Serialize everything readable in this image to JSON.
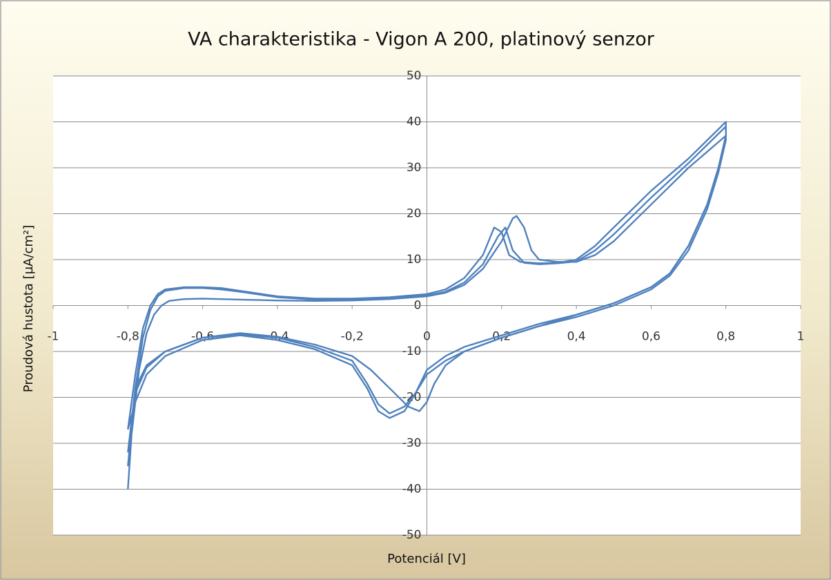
{
  "chart_data": {
    "type": "line",
    "title": "VA charakteristika - Vigon A 200, platinový senzor",
    "xlabel": "Potenciál [V]",
    "ylabel": "Proudová hustota [µA/cm²]",
    "xlim": [
      -1,
      1
    ],
    "ylim": [
      -50,
      50
    ],
    "xticks": [
      -1,
      {
        "value": -0.8,
        "label": "-0,8"
      },
      {
        "value": -0.6,
        "label": "-0,6"
      },
      {
        "value": -0.4,
        "label": "-0,4"
      },
      {
        "value": -0.2,
        "label": "-0,2"
      },
      0,
      {
        "value": 0.2,
        "label": "0,2"
      },
      {
        "value": 0.4,
        "label": "0,4"
      },
      {
        "value": 0.6,
        "label": "0,6"
      },
      {
        "value": 0.8,
        "label": "0,8"
      },
      1
    ],
    "yticks": [
      -50,
      -40,
      -30,
      -20,
      -10,
      0,
      10,
      20,
      30,
      40,
      50
    ],
    "grid": true,
    "series": [
      {
        "color": "#4f81bd",
        "x": [
          -0.8,
          -0.78,
          -0.76,
          -0.74,
          -0.72,
          -0.7,
          -0.65,
          -0.6,
          -0.55,
          -0.5,
          -0.4,
          -0.3,
          -0.2,
          -0.1,
          0,
          0.05,
          0.1,
          0.15,
          0.18,
          0.2,
          0.22,
          0.25,
          0.3,
          0.35,
          0.4,
          0.45,
          0.5,
          0.55,
          0.6,
          0.7,
          0.8,
          0.8,
          0.78,
          0.75,
          0.7,
          0.65,
          0.6,
          0.5,
          0.4,
          0.3,
          0.2,
          0.1,
          0.05,
          0,
          -0.03,
          -0.06,
          -0.1,
          -0.13,
          -0.16,
          -0.2,
          -0.3,
          -0.4,
          -0.5,
          -0.6,
          -0.7,
          -0.75,
          -0.78,
          -0.8
        ],
        "values": [
          -27,
          -15,
          -5,
          0,
          2.5,
          3.5,
          4,
          4,
          3.8,
          3.2,
          2,
          1.5,
          1.5,
          1.8,
          2.5,
          3.5,
          6,
          11,
          17,
          16,
          11,
          9.5,
          9.2,
          9.3,
          10,
          13,
          17,
          21,
          25,
          32,
          40,
          37,
          30,
          22,
          13,
          7,
          4,
          0.5,
          -2,
          -4,
          -6.5,
          -9,
          -11,
          -14,
          -19,
          -23,
          -24.5,
          -23,
          -18,
          -13,
          -9.5,
          -7.5,
          -6.5,
          -7.5,
          -11,
          -15,
          -21,
          -27
        ]
      },
      {
        "color": "#4f81bd",
        "x": [
          -0.8,
          -0.78,
          -0.76,
          -0.74,
          -0.72,
          -0.7,
          -0.65,
          -0.6,
          -0.55,
          -0.5,
          -0.4,
          -0.3,
          -0.2,
          -0.1,
          0,
          0.05,
          0.1,
          0.15,
          0.19,
          0.21,
          0.23,
          0.26,
          0.3,
          0.35,
          0.4,
          0.45,
          0.5,
          0.55,
          0.6,
          0.7,
          0.8,
          0.8,
          0.78,
          0.75,
          0.7,
          0.65,
          0.6,
          0.5,
          0.4,
          0.3,
          0.2,
          0.1,
          0.05,
          0,
          -0.03,
          -0.06,
          -0.1,
          -0.13,
          -0.16,
          -0.2,
          -0.3,
          -0.4,
          -0.5,
          -0.6,
          -0.7,
          -0.75,
          -0.78,
          -0.8
        ],
        "values": [
          -32,
          -18,
          -7,
          -1,
          2,
          3.2,
          3.8,
          3.8,
          3.5,
          3,
          1.8,
          1.3,
          1.3,
          1.6,
          2.2,
          3,
          5,
          9,
          15,
          17,
          12,
          9.3,
          9,
          9.2,
          9.6,
          12,
          15.5,
          19.5,
          23.5,
          31,
          39,
          36,
          29,
          21,
          12,
          6.5,
          3.5,
          0,
          -2.5,
          -4.5,
          -7,
          -10,
          -12,
          -15,
          -19,
          -22,
          -23.5,
          -21.5,
          -17,
          -12,
          -9,
          -7,
          -6.3,
          -7,
          -10,
          -13.5,
          -19,
          -32
        ]
      },
      {
        "color": "#4f81bd",
        "x": [
          -0.8,
          -0.79,
          -0.77,
          -0.75,
          -0.73,
          -0.71,
          -0.69,
          -0.65,
          -0.6,
          -0.55,
          -0.5,
          -0.4,
          -0.3,
          -0.2,
          -0.1,
          0,
          0.05,
          0.1,
          0.15,
          0.2,
          0.23,
          0.24,
          0.26,
          0.28,
          0.3,
          0.35,
          0.4,
          0.45,
          0.5,
          0.55,
          0.6,
          0.7,
          0.8,
          0.8,
          0.78,
          0.75,
          0.7,
          0.65,
          0.6,
          0.5,
          0.4,
          0.3,
          0.2,
          0.1,
          0.05,
          0.02,
          0,
          -0.02,
          -0.05,
          -0.1,
          -0.15,
          -0.2,
          -0.3,
          -0.4,
          -0.5,
          -0.6,
          -0.7,
          -0.75,
          -0.78,
          -0.8
        ],
        "values": [
          -40,
          -28,
          -14,
          -6,
          -2,
          0,
          1,
          1.4,
          1.5,
          1.4,
          1.3,
          1.1,
          1,
          1.1,
          1.4,
          2,
          2.8,
          4.5,
          8,
          14,
          19,
          19.5,
          17,
          12,
          10,
          9.5,
          9.5,
          11,
          14,
          18,
          22,
          30,
          37,
          37,
          30,
          22,
          13,
          7,
          4,
          0.5,
          -2,
          -4.5,
          -7,
          -10,
          -13,
          -17,
          -21,
          -23,
          -22,
          -18,
          -14,
          -11,
          -8.5,
          -6.8,
          -6,
          -7,
          -10,
          -13,
          -18,
          -35
        ]
      }
    ]
  }
}
